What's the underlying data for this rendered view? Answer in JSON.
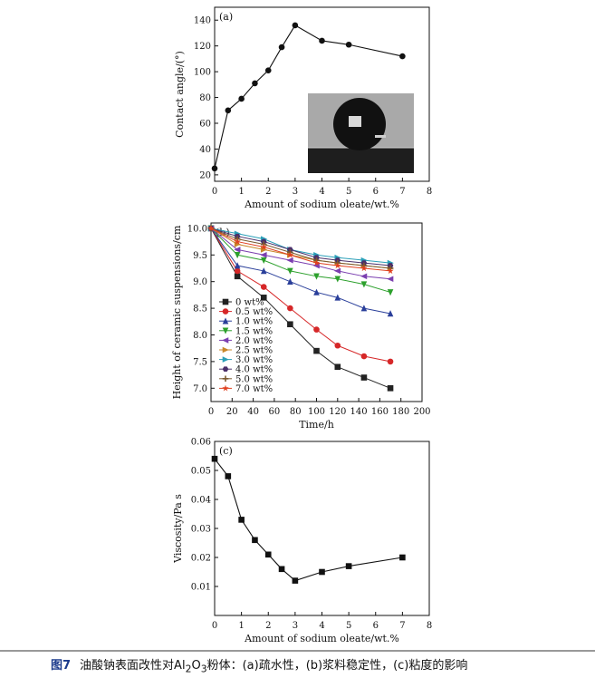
{
  "caption": {
    "label": "图7",
    "text_before": "油酸钠表面改性对Al",
    "sub1": "2",
    "text_mid": "O",
    "sub2": "3",
    "text_after": "粉体：(a)疏水性，(b)浆料稳定性，(c)粘度的影响"
  },
  "chart_data": [
    {
      "id": "a",
      "type": "line",
      "panel_label": "(a)",
      "xlabel": "Amount of sodium oleate/wt.%",
      "ylabel": "Contact angle/(°)",
      "xlim": [
        0,
        8
      ],
      "ylim": [
        15,
        150
      ],
      "xticks": [
        0,
        1,
        2,
        3,
        4,
        5,
        6,
        7,
        8
      ],
      "yticks": [
        20,
        40,
        60,
        80,
        100,
        120,
        140
      ],
      "marker": "circle",
      "x": [
        0,
        0.5,
        1.0,
        1.5,
        2.0,
        2.5,
        3.0,
        4.0,
        5.0,
        7.0
      ],
      "y": [
        25,
        70,
        79,
        91,
        101,
        119,
        136,
        124,
        121,
        112
      ],
      "inset": "water droplet contact angle photo"
    },
    {
      "id": "b",
      "type": "line",
      "panel_label": "(b)",
      "xlabel": "Time/h",
      "ylabel": "Height of ceramic suspensions/cm",
      "xlim": [
        0,
        200
      ],
      "ylim": [
        6.75,
        10.1
      ],
      "xticks": [
        0,
        20,
        40,
        60,
        80,
        100,
        120,
        140,
        160,
        180,
        200
      ],
      "yticks": [
        7.0,
        7.5,
        8.0,
        8.5,
        9.0,
        9.5,
        10.0
      ],
      "x": [
        0,
        25,
        50,
        75,
        100,
        120,
        145,
        170
      ],
      "series": [
        {
          "name": "0 wt%",
          "color": "#222222",
          "marker": "square",
          "values": [
            10.0,
            9.1,
            8.7,
            8.2,
            7.7,
            7.4,
            7.2,
            7.0
          ]
        },
        {
          "name": "0.5 wt%",
          "color": "#d62728",
          "marker": "circle",
          "values": [
            10.0,
            9.2,
            8.9,
            8.5,
            8.1,
            7.8,
            7.6,
            7.5
          ]
        },
        {
          "name": "1.0 wt%",
          "color": "#2a3f9a",
          "marker": "triangle",
          "values": [
            10.0,
            9.3,
            9.2,
            9.0,
            8.8,
            8.7,
            8.5,
            8.4
          ]
        },
        {
          "name": "1.5 wt%",
          "color": "#2ca02c",
          "marker": "tri-down",
          "values": [
            10.0,
            9.5,
            9.4,
            9.2,
            9.1,
            9.05,
            8.95,
            8.8
          ]
        },
        {
          "name": "2.0 wt%",
          "color": "#7b3fb0",
          "marker": "tri-left",
          "values": [
            10.0,
            9.6,
            9.5,
            9.4,
            9.3,
            9.2,
            9.1,
            9.05
          ]
        },
        {
          "name": "2.5 wt%",
          "color": "#c8872a",
          "marker": "tri-right",
          "values": [
            10.0,
            9.7,
            9.6,
            9.5,
            9.4,
            9.35,
            9.3,
            9.25
          ]
        },
        {
          "name": "3.0 wt%",
          "color": "#2a9fb8",
          "marker": "tri-right",
          "values": [
            10.0,
            9.9,
            9.8,
            9.6,
            9.5,
            9.45,
            9.4,
            9.35
          ]
        },
        {
          "name": "4.0 wt%",
          "color": "#4a2f6a",
          "marker": "hexagon",
          "values": [
            10.0,
            9.85,
            9.75,
            9.6,
            9.45,
            9.4,
            9.35,
            9.3
          ]
        },
        {
          "name": "5.0 wt%",
          "color": "#7a5a30",
          "marker": "plus",
          "values": [
            10.0,
            9.8,
            9.7,
            9.55,
            9.4,
            9.35,
            9.3,
            9.25
          ]
        },
        {
          "name": "7.0 wt%",
          "color": "#e0401f",
          "marker": "star",
          "values": [
            10.0,
            9.75,
            9.65,
            9.5,
            9.35,
            9.3,
            9.25,
            9.2
          ]
        }
      ],
      "legend_placement": "bottom-left"
    },
    {
      "id": "c",
      "type": "line",
      "panel_label": "(c)",
      "xlabel": "Amount of sodium oleate/wt.%",
      "ylabel": "Viscosity/Pa s",
      "xlim": [
        0,
        8
      ],
      "ylim": [
        0.0,
        0.06
      ],
      "xticks": [
        0,
        1,
        2,
        3,
        4,
        5,
        6,
        7,
        8
      ],
      "yticks": [
        0.01,
        0.02,
        0.03,
        0.04,
        0.05,
        0.06
      ],
      "ytick_labels": [
        "0.01",
        "0.02",
        "0.03",
        "0.04",
        "0.05",
        "0.06"
      ],
      "marker": "square",
      "x": [
        0,
        0.5,
        1.0,
        1.5,
        2.0,
        2.5,
        3.0,
        4.0,
        5.0,
        7.0
      ],
      "y": [
        0.054,
        0.048,
        0.033,
        0.026,
        0.021,
        0.016,
        0.012,
        0.015,
        0.017,
        0.02
      ]
    }
  ]
}
